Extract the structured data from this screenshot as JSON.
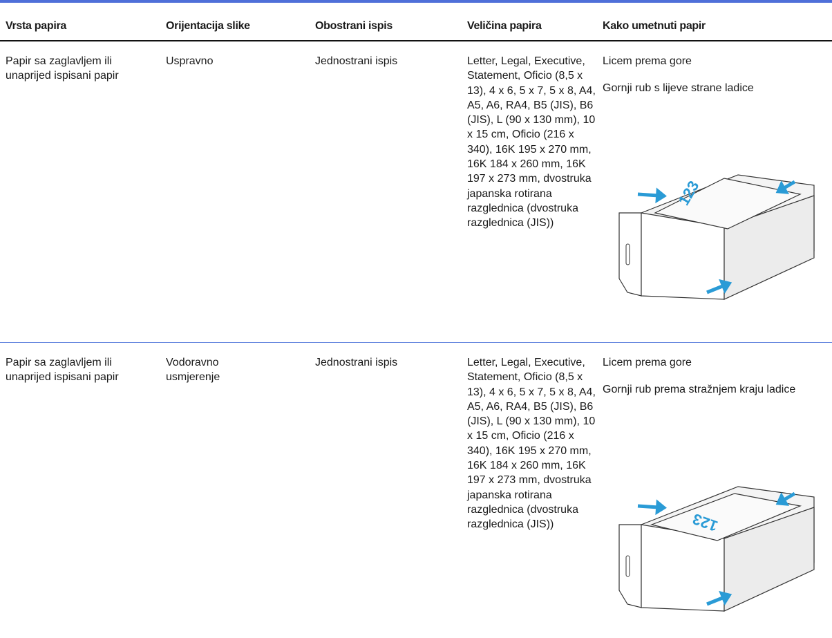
{
  "table": {
    "headers": [
      "Vrsta papira",
      "Orijentacija slike",
      "Obostrani ispis",
      "Veličina papira",
      "Kako umetnuti papir"
    ],
    "rows": [
      {
        "paper_type": "Papir sa zaglavljem ili unaprijed ispisani papir",
        "orientation": "Uspravno",
        "duplex": "Jednostrani ispis",
        "sizes": "Letter, Legal, Executive, Statement, Oficio (8,5 x 13), 4 x 6, 5 x 7, 5 x 8, A4, A5, A6, RA4, B5 (JIS), B6 (JIS), L (90 x 130 mm), 10 x 15 cm, Oficio (216 x 340), 16K 195 x 270 mm, 16K 184 x 260 mm, 16K 197 x 273 mm, dvostruka japanska rotirana razglednica (dvostruka razglednica (JIS))",
        "loading": [
          "Licem prema gore",
          "Gornji rub s lijeve strane ladice"
        ],
        "image_text": "123"
      },
      {
        "paper_type": "Papir sa zaglavljem ili unaprijed ispisani papir",
        "orientation": "Vodoravno usmjerenje",
        "duplex": "Jednostrani ispis",
        "sizes": "Letter, Legal, Executive, Statement, Oficio (8,5 x 13), 4 x 6, 5 x 7, 5 x 8, A4, A5, A6, RA4, B5 (JIS), B6 (JIS), L (90 x 130 mm), 10 x 15 cm, Oficio (216 x 340), 16K 195 x 270 mm, 16K 184 x 260 mm, 16K 197 x 273 mm, dvostruka japanska rotirana razglednica (dvostruka razglednica (JIS))",
        "loading": [
          "Licem prema gore",
          "Gornji rub prema stražnjem kraju ladice"
        ],
        "image_text": "123"
      }
    ]
  }
}
